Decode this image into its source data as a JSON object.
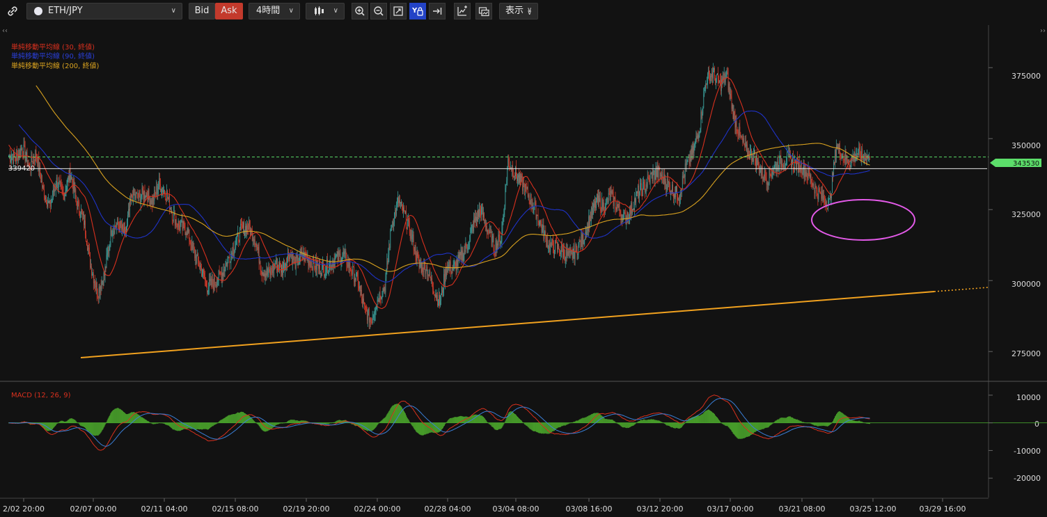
{
  "toolbar": {
    "symbol": "ETH/JPY",
    "bid_label": "Bid",
    "ask_label": "Ask",
    "timeframe": "4時間",
    "display_label": "表示"
  },
  "legend": {
    "ma1": "単純移動平均線 (30, 終値)",
    "ma2": "単純移動平均線 (90, 終値)",
    "ma3": "単純移動平均線 (200, 終値)",
    "macd": "MACD (12, 26, 9)"
  },
  "price_labels": {
    "hline": "339420",
    "current": "343530"
  },
  "y_ticks": [
    "375000",
    "350000",
    "325000",
    "300000",
    "275000"
  ],
  "macd_ticks": [
    "10000",
    "0",
    "-10000",
    "-20000"
  ],
  "x_ticks": [
    "2/02 20:00",
    "02/07 00:00",
    "02/11 04:00",
    "02/15 08:00",
    "02/19 20:00",
    "02/24 00:00",
    "02/28 04:00",
    "03/04 08:00",
    "03/08 16:00",
    "03/12 20:00",
    "03/17 00:00",
    "03/21 08:00",
    "03/25 12:00",
    "03/29 16:00"
  ],
  "colors": {
    "up": "#3a9c98",
    "down": "#d23a2a",
    "ma30": "#d8301e",
    "ma90": "#1f33c8",
    "ma200": "#d9a21f",
    "trend": "#f2a21f",
    "ellipse": "#e35ae8",
    "current": "#5cde6a",
    "macd_hist": "#52b82f"
  },
  "chart_data": {
    "type": "candlestick",
    "symbol": "ETH/JPY",
    "interval": "4時間",
    "ylim": [
      265000,
      390000
    ],
    "closes": [
      344000,
      343000,
      347000,
      340000,
      345000,
      332000,
      326000,
      335000,
      330000,
      338000,
      327000,
      321000,
      305000,
      296000,
      302000,
      318000,
      320000,
      316000,
      330000,
      329000,
      331000,
      328000,
      334000,
      331000,
      323000,
      319000,
      318000,
      310000,
      305000,
      298000,
      299000,
      302000,
      307000,
      312000,
      318000,
      319000,
      315000,
      304000,
      302000,
      306000,
      304000,
      310000,
      306000,
      309000,
      307000,
      305000,
      304000,
      306000,
      308000,
      309000,
      304000,
      300000,
      290000,
      286000,
      294000,
      298000,
      320000,
      328000,
      322000,
      315000,
      305000,
      305000,
      298000,
      292000,
      305000,
      304000,
      308000,
      312000,
      320000,
      325000,
      318000,
      312000,
      315000,
      342000,
      338000,
      334000,
      330000,
      325000,
      318000,
      312000,
      312000,
      310000,
      308000,
      311000,
      315000,
      322000,
      328000,
      326000,
      330000,
      326000,
      322000,
      325000,
      331000,
      333000,
      337000,
      338000,
      335000,
      332000,
      330000,
      340000,
      345000,
      354000,
      371000,
      373000,
      369000,
      372000,
      358000,
      350000,
      345000,
      344000,
      338000,
      336000,
      340000,
      342000,
      343000,
      341000,
      340000,
      337000,
      332000,
      329000,
      327000,
      348000,
      344000,
      342000,
      345000,
      343530
    ],
    "sma": [
      {
        "period": 30,
        "color": "#d8301e"
      },
      {
        "period": 90,
        "color": "#1f33c8"
      },
      {
        "period": 200,
        "color": "#d9a21f"
      }
    ],
    "horizontal_line": 339420,
    "current_price": 343530,
    "macd": {
      "fast": 12,
      "slow": 26,
      "signal": 9,
      "ylim": [
        -27000,
        14000
      ]
    }
  }
}
